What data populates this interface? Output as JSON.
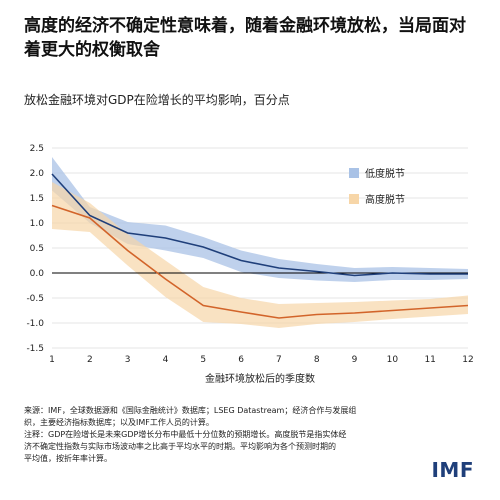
{
  "header": {
    "title": "高度的经济不确定性意味着，随着金融环境放松，当局面对着更大的权衡取舍"
  },
  "chart_data": {
    "type": "line",
    "title": "放松金融环境对GDP在险增长的平均影响，百分点",
    "xlabel": "金融环境放松后的季度数",
    "ylabel": "",
    "x": [
      1,
      2,
      3,
      4,
      5,
      6,
      7,
      8,
      9,
      10,
      11,
      12
    ],
    "xlim": [
      1,
      12
    ],
    "ylim": [
      -1.5,
      2.5
    ],
    "yticks": [
      -1.5,
      -1.0,
      -0.5,
      0.0,
      0.5,
      1.0,
      1.5,
      2.0,
      2.5
    ],
    "ytick_labels": [
      "-1.5",
      "-1.0",
      "-0.5",
      "0.0",
      "0.5",
      "1.0",
      "1.5",
      "2.0",
      "2.5"
    ],
    "xtick_labels": [
      "1",
      "2",
      "3",
      "4",
      "5",
      "6",
      "7",
      "8",
      "9",
      "10",
      "11",
      "12"
    ],
    "grid": "horizontal",
    "legend_position": "top-right",
    "series": [
      {
        "name": "低度脱节",
        "color": "#1f3f7a",
        "band_color": "#a9c2e6",
        "values": [
          1.98,
          1.15,
          0.8,
          0.7,
          0.52,
          0.25,
          0.1,
          0.03,
          -0.05,
          0.0,
          -0.02,
          -0.02
        ],
        "lower": [
          1.65,
          1.0,
          0.58,
          0.45,
          0.3,
          0.02,
          -0.1,
          -0.15,
          -0.18,
          -0.14,
          -0.14,
          -0.12
        ],
        "upper": [
          2.32,
          1.32,
          1.02,
          0.95,
          0.72,
          0.45,
          0.28,
          0.18,
          0.1,
          0.12,
          0.1,
          0.08
        ]
      },
      {
        "name": "高度脱节",
        "color": "#d2642a",
        "band_color": "#f7d6a8",
        "values": [
          1.35,
          1.1,
          0.45,
          -0.12,
          -0.65,
          -0.78,
          -0.9,
          -0.83,
          -0.8,
          -0.75,
          -0.7,
          -0.65
        ],
        "lower": [
          0.88,
          0.82,
          0.15,
          -0.48,
          -0.98,
          -1.02,
          -1.1,
          -1.02,
          -0.98,
          -0.92,
          -0.87,
          -0.82
        ],
        "upper": [
          1.82,
          1.4,
          0.78,
          0.25,
          -0.28,
          -0.5,
          -0.62,
          -0.6,
          -0.58,
          -0.55,
          -0.52,
          -0.45
        ]
      }
    ]
  },
  "footer": {
    "source_line1": "来源：IMF，全球数据源和《国际金融统计》数据库；LSEG Datastream；经济合作与发展组",
    "source_line2": "织，主要经济指标数据库；以及IMF工作人员的计算。",
    "note_line1": "注释：GDP在险增长是未来GDP增长分布中最低十分位数的预期增长。高度脱节是指实体经",
    "note_line2": "济不确定性指数与实际市场波动率之比高于平均水平的时期。平均影响为各个预测时期的",
    "note_line3": "平均值，按折年率计算。",
    "logo_text": "IMF"
  }
}
